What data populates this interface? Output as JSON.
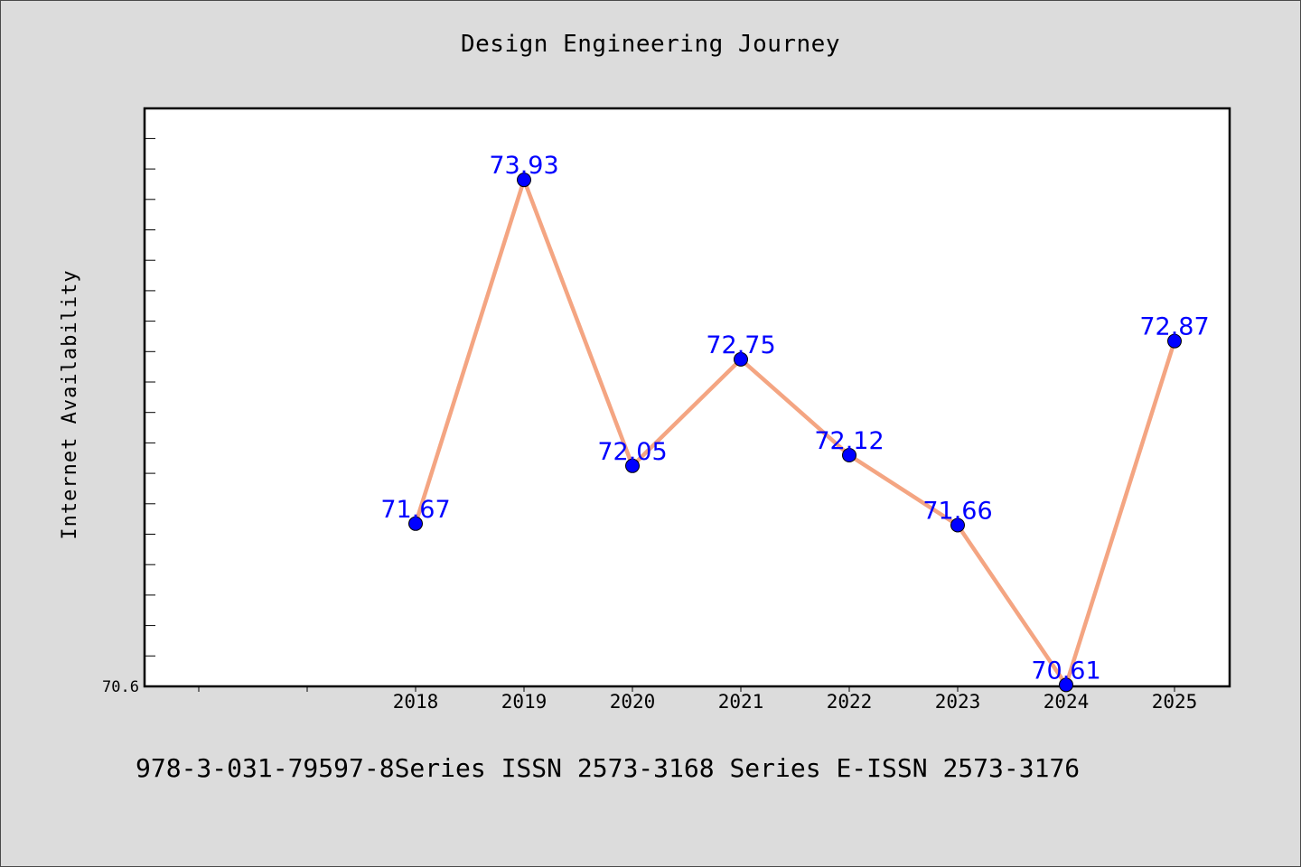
{
  "title": "Design Engineering Journey",
  "footnote": "978-3-031-79597-8Series ISSN 2573-3168 Series E-ISSN 2573-3176",
  "chart_data": {
    "type": "line",
    "title": "Design Engineering Journey",
    "xlabel": "",
    "ylabel": "Internet Availability",
    "categories": [
      "2018",
      "2019",
      "2020",
      "2021",
      "2022",
      "2023",
      "2024",
      "2025"
    ],
    "series": [
      {
        "values": [
          71.67,
          73.93,
          72.05,
          72.75,
          72.12,
          71.66,
          70.61,
          72.87
        ],
        "data_labels": [
          "71.67",
          "73.93",
          "72.05",
          "72.75",
          "72.12",
          "71.66",
          "70.61",
          "72.87"
        ]
      }
    ],
    "y_tick_labels": [
      "70.6"
    ],
    "ylim": [
      70.6,
      74.4
    ],
    "grid": false,
    "legend": "none",
    "colors": {
      "line": "#f4a582",
      "marker": "#0000ff",
      "data_label": "#0000ff",
      "plot_background": "#ffffff",
      "figure_background": "#dcdcdc"
    }
  }
}
